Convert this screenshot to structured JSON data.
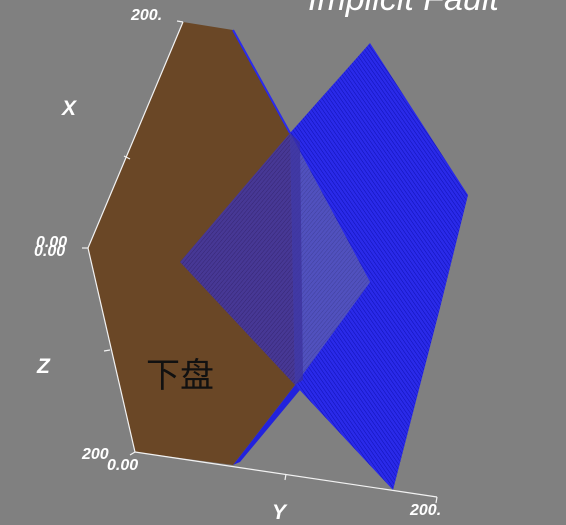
{
  "viewer": {
    "title": "Implicit Fault",
    "background": "#808080"
  },
  "axes": {
    "x": {
      "label": "X",
      "min_tick": "0.00",
      "max_tick": "200."
    },
    "y": {
      "label": "Y",
      "min_tick": "0.00",
      "max_tick": "200."
    },
    "z": {
      "label": "Z",
      "min_tick": "0.00",
      "max_tick": "200"
    }
  },
  "surfaces": {
    "footwall": {
      "label": "下盘",
      "color": "#6a4726"
    },
    "fault_plane": {
      "color": "#1414e6"
    }
  }
}
